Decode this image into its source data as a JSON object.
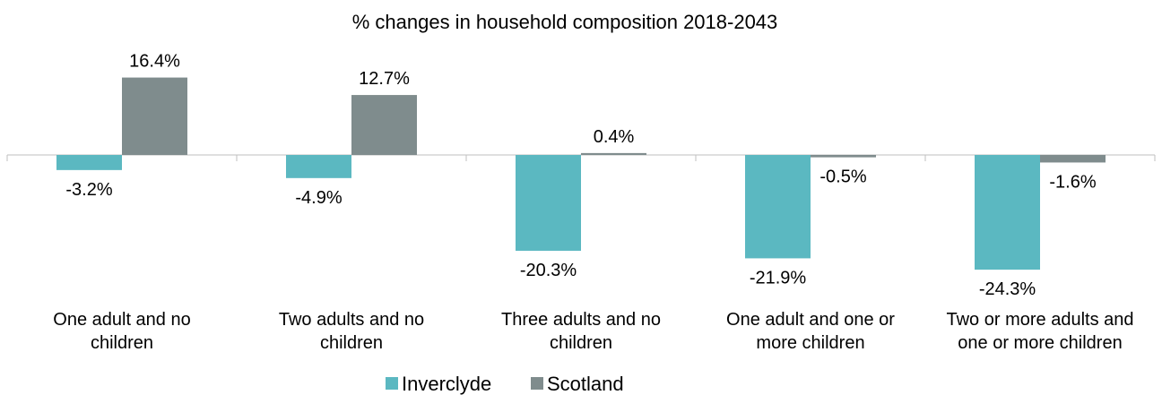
{
  "chart_data": {
    "type": "bar",
    "title": "% changes in household composition 2018-2043",
    "categories": [
      [
        "One adult and no",
        "children"
      ],
      [
        "Two adults and no",
        "children"
      ],
      [
        "Three adults and no",
        "children"
      ],
      [
        "One adult and one or",
        "more children"
      ],
      [
        "Two or more adults and",
        "one or more children"
      ]
    ],
    "series": [
      {
        "name": "Inverclyde",
        "color": "#5bb8c1",
        "values": [
          -3.2,
          -4.9,
          -20.3,
          -21.9,
          -24.3
        ],
        "labels": [
          "-3.2%",
          "-4.9%",
          "-20.3%",
          "-21.9%",
          "-24.3%"
        ]
      },
      {
        "name": "Scotland",
        "color": "#7f8c8d",
        "values": [
          16.4,
          12.7,
          0.4,
          -0.5,
          -1.6
        ],
        "labels": [
          "16.4%",
          "12.7%",
          "0.4%",
          "-0.5%",
          "-1.6%"
        ]
      }
    ],
    "legend": "bottom",
    "grid": false
  }
}
